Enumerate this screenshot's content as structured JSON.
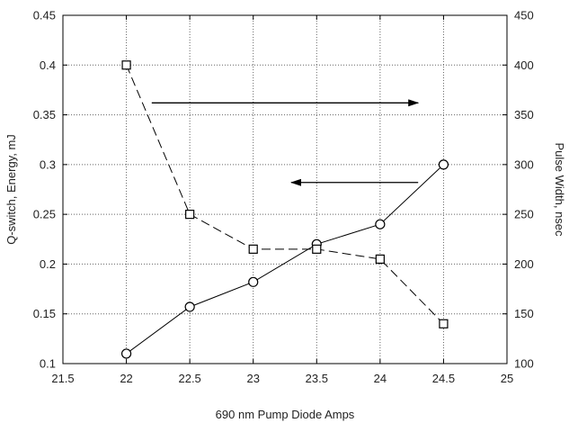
{
  "chart_data": {
    "type": "line",
    "xlabel": "690 nm Pump Diode Amps",
    "ylabel_left": "Q-switch, Energy, mJ",
    "ylabel_right": "Pulse Width, nsec",
    "xlim": [
      21.5,
      25
    ],
    "ylim_left": [
      0.1,
      0.45
    ],
    "ylim_right": [
      100,
      450
    ],
    "x_ticks": [
      "21.5",
      "22",
      "22.5",
      "23",
      "23.5",
      "24",
      "24.5",
      "25"
    ],
    "y_left_ticks": [
      "0.1",
      "0.15",
      "0.2",
      "0.25",
      "0.3",
      "0.35",
      "0.4",
      "0.45"
    ],
    "y_right_ticks": [
      "100",
      "150",
      "200",
      "250",
      "300",
      "350",
      "400",
      "450"
    ],
    "grid": true,
    "series": [
      {
        "axis": "left",
        "marker": "circle",
        "line_style": "solid",
        "x": [
          22,
          22.5,
          23,
          23.5,
          24,
          24.5
        ],
        "y": [
          0.11,
          0.157,
          0.182,
          0.22,
          0.24,
          0.3
        ]
      },
      {
        "axis": "right",
        "marker": "square",
        "line_style": "dashed",
        "x": [
          22,
          22.5,
          23,
          23.5,
          24,
          24.5
        ],
        "y": [
          400,
          250,
          215,
          215,
          205,
          140
        ]
      }
    ],
    "annotations": [
      {
        "type": "arrow",
        "direction": "right",
        "from": [
          22.2,
          362
        ],
        "to": [
          24.3,
          362
        ]
      },
      {
        "type": "arrow",
        "direction": "left",
        "from": [
          24.3,
          0.282
        ],
        "to": [
          23.3,
          0.282
        ]
      }
    ]
  }
}
